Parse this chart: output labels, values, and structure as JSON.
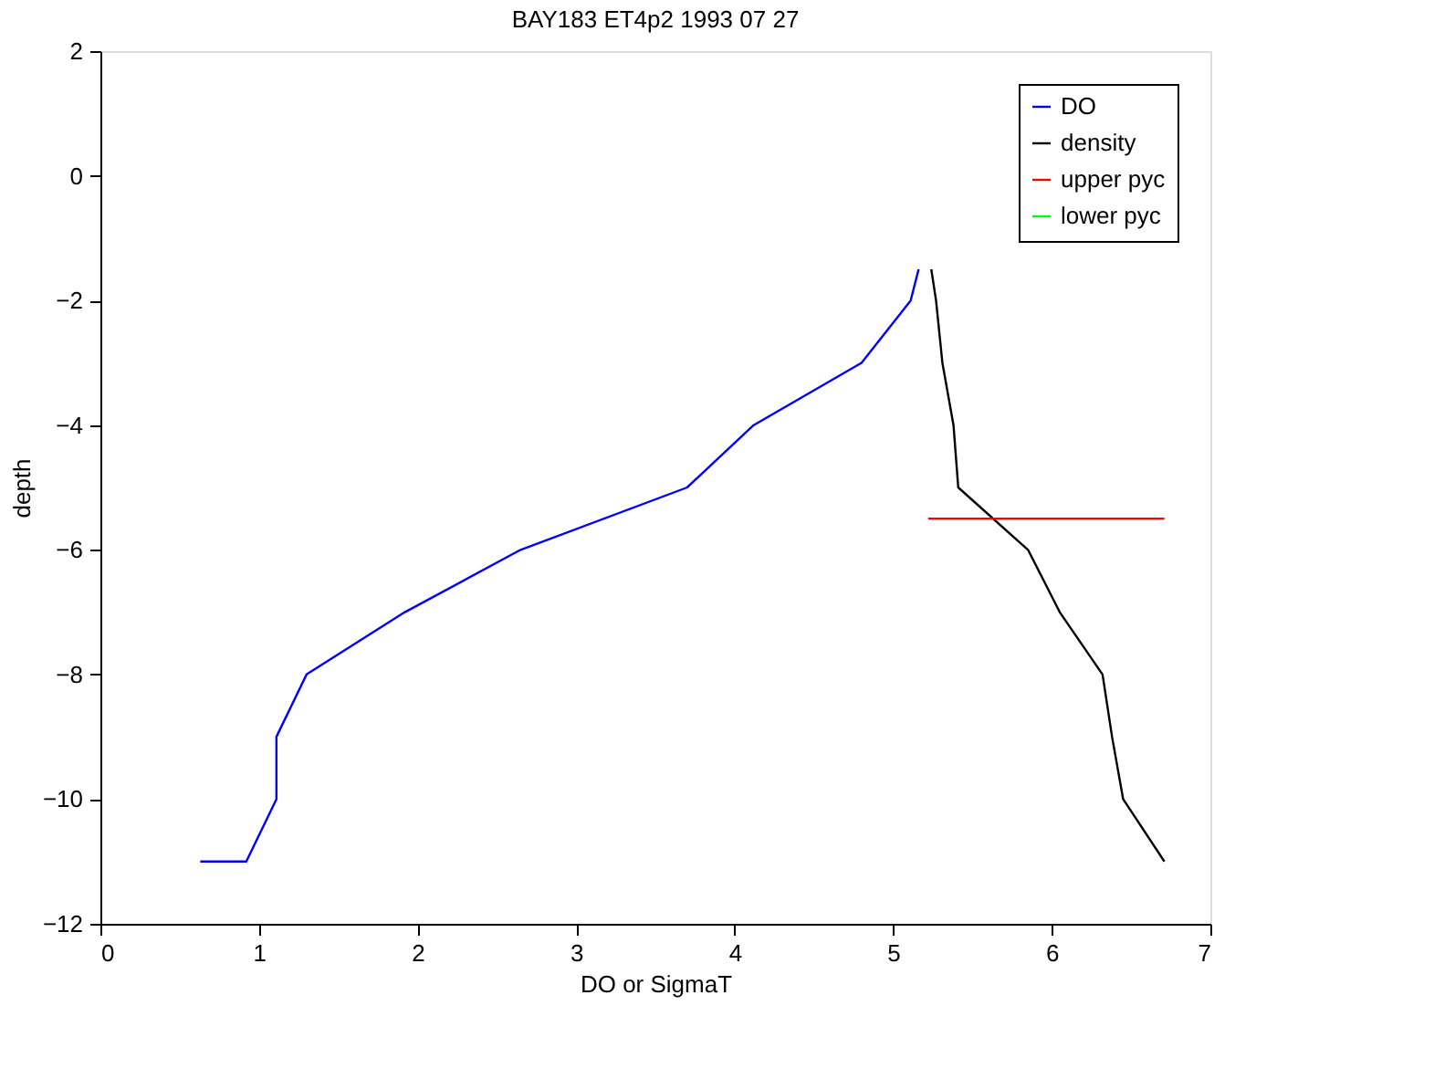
{
  "chart_data": {
    "type": "line",
    "title": "BAY183 ET4p2          1993 07 27",
    "xlabel": "DO or SigmaT",
    "ylabel": "depth",
    "xlim": [
      0,
      7
    ],
    "xticks": [
      0,
      1,
      2,
      3,
      4,
      5,
      6,
      7
    ],
    "ylim": [
      -12,
      2
    ],
    "yticks": [
      -12,
      -10,
      -8,
      -6,
      -4,
      -2,
      0,
      2
    ],
    "grid": false,
    "legend": "top right",
    "line_style": "solid",
    "marker": "none",
    "series": [
      {
        "name": "DO",
        "color": "#0000ff",
        "x": [
          0.63,
          0.92,
          1.11,
          1.11,
          1.3,
          1.92,
          2.65,
          3.7,
          4.12,
          4.8,
          5.11,
          5.16
        ],
        "values": [
          -11,
          -11,
          -10,
          -9,
          -8,
          -7,
          -6,
          -5,
          -4,
          -3,
          -2,
          -1.5
        ]
      },
      {
        "name": "density",
        "color": "#000000",
        "x": [
          5.24,
          5.27,
          5.31,
          5.38,
          5.41,
          5.85,
          6.05,
          6.32,
          6.38,
          6.45,
          6.71
        ],
        "values": [
          -1.5,
          -2,
          -3,
          -4,
          -5,
          -6,
          -7,
          -8,
          -9,
          -10,
          -11
        ]
      },
      {
        "name": "upper pyc",
        "color": "#ff0000",
        "x": [
          5.22,
          6.71
        ],
        "values": [
          -5.5,
          -5.5
        ]
      },
      {
        "name": "lower pyc",
        "color": "#00ff00"
      }
    ]
  }
}
